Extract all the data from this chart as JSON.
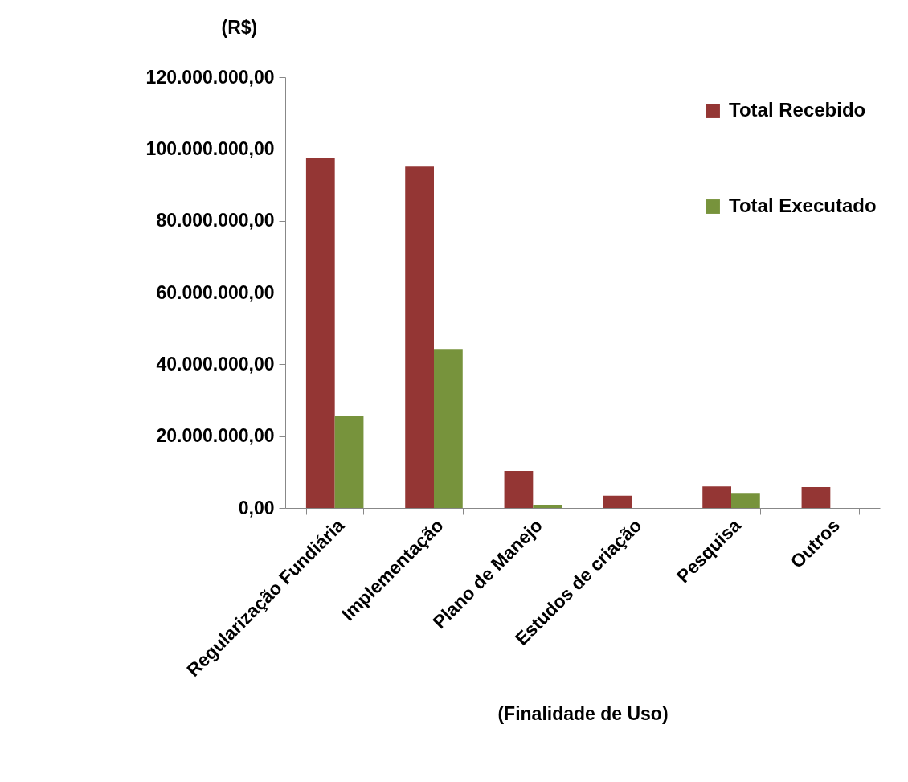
{
  "chart_data": {
    "type": "bar",
    "xlabel": "(Finalidade de Uso)",
    "ylabel": "(R$)",
    "categories": [
      "Regularização Fundiária",
      "Implementação",
      "Plano de Manejo",
      "Estudos de criação",
      "Pesquisa",
      "Outros"
    ],
    "series": [
      {
        "name": "Total Recebido",
        "color": "#943634",
        "values": [
          97400000,
          95100000,
          10300000,
          3400000,
          6000000,
          5800000
        ]
      },
      {
        "name": "Total Executado",
        "color": "#77933c",
        "values": [
          25700000,
          44300000,
          900000,
          0,
          4000000,
          0
        ]
      }
    ],
    "ylim": [
      0,
      120000000
    ],
    "yticks": [
      {
        "value": 0,
        "label": "0,00"
      },
      {
        "value": 20000000,
        "label": "20.000.000,00"
      },
      {
        "value": 40000000,
        "label": "40.000.000,00"
      },
      {
        "value": 60000000,
        "label": "60.000.000,00"
      },
      {
        "value": 80000000,
        "label": "80.000.000,00"
      },
      {
        "value": 100000000,
        "label": "100.000.000,00"
      },
      {
        "value": 120000000,
        "label": "120.000.000,00"
      }
    ],
    "grid": false,
    "legend": "top right"
  }
}
